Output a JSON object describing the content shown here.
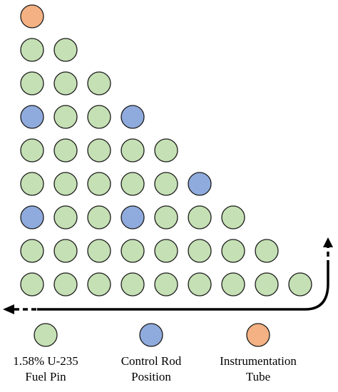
{
  "colors": {
    "fuel": "#c5e0b4",
    "control": "#8faadc",
    "instrument": "#f4b183",
    "outline": "#1a1a1a",
    "arrow": "#000000"
  },
  "pin_map": [
    [
      "I"
    ],
    [
      "F",
      "F"
    ],
    [
      "F",
      "F",
      "F"
    ],
    [
      "C",
      "F",
      "F",
      "C"
    ],
    [
      "F",
      "F",
      "F",
      "F",
      "F"
    ],
    [
      "F",
      "F",
      "F",
      "F",
      "F",
      "C"
    ],
    [
      "C",
      "F",
      "F",
      "C",
      "F",
      "F",
      "F"
    ],
    [
      "F",
      "F",
      "F",
      "F",
      "F",
      "F",
      "F",
      "F"
    ],
    [
      "F",
      "F",
      "F",
      "F",
      "F",
      "F",
      "F",
      "F",
      "F"
    ]
  ],
  "legend": {
    "fuel": {
      "label": "1.58% U-235\nFuel Pin"
    },
    "control": {
      "label": "Control Rod\nPosition"
    },
    "instrument": {
      "label": "Instrumentation\nTube"
    }
  }
}
